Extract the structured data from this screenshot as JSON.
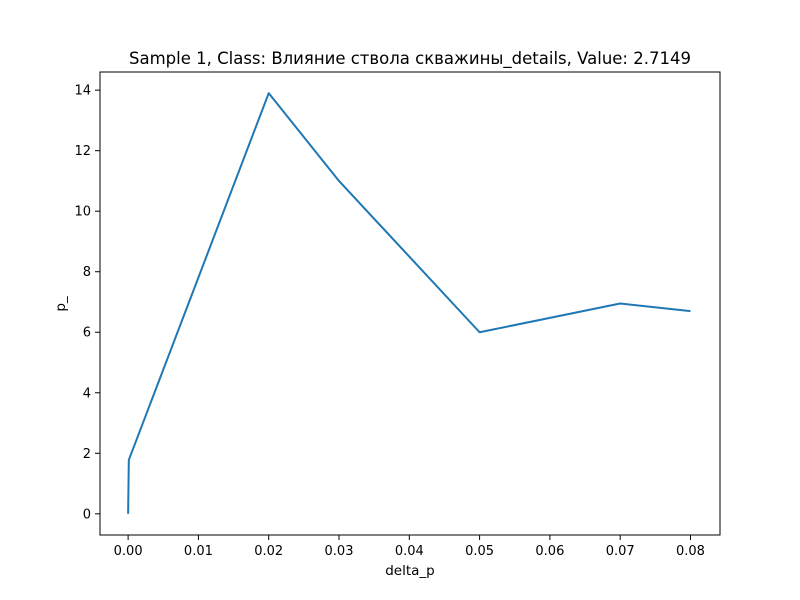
{
  "chart_data": {
    "type": "line",
    "title": "Sample 1, Class: Влияние ствола скважины_details, Value: 2.7149",
    "xlabel": "delta_p",
    "ylabel": "p_",
    "xlim": [
      -0.004,
      0.0842
    ],
    "ylim": [
      -0.7,
      14.6
    ],
    "x_ticks": [
      0.0,
      0.01,
      0.02,
      0.03,
      0.04,
      0.05,
      0.06,
      0.07,
      0.08
    ],
    "x_tick_labels": [
      "0.00",
      "0.01",
      "0.02",
      "0.03",
      "0.04",
      "0.05",
      "0.06",
      "0.07",
      "0.08"
    ],
    "y_ticks": [
      0,
      2,
      4,
      6,
      8,
      10,
      12,
      14
    ],
    "y_tick_labels": [
      "0",
      "2",
      "4",
      "6",
      "8",
      "10",
      "12",
      "14"
    ],
    "grid": false,
    "series": [
      {
        "color": "#1f77b4",
        "x": [
          0.0,
          0.0001,
          0.02,
          0.03,
          0.05,
          0.07,
          0.08
        ],
        "y": [
          0.0,
          1.78,
          13.9,
          11.0,
          6.0,
          6.95,
          6.7
        ]
      }
    ]
  }
}
